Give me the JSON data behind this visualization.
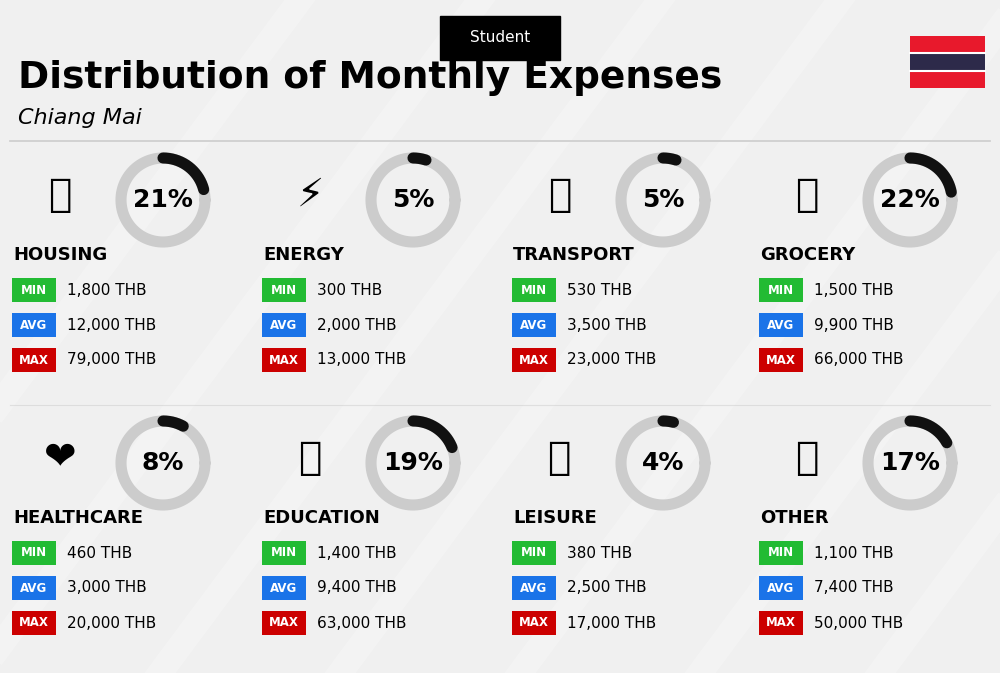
{
  "title": "Distribution of Monthly Expenses",
  "subtitle": "Chiang Mai",
  "category_label": "Student",
  "bg_color": "#f0f0f0",
  "categories": [
    {
      "name": "HOUSING",
      "pct": 21,
      "icon": "🏫",
      "min_val": "1,800 THB",
      "avg_val": "12,000 THB",
      "max_val": "79,000 THB",
      "col": 0,
      "row": 0
    },
    {
      "name": "ENERGY",
      "pct": 5,
      "icon": "⚡",
      "min_val": "300 THB",
      "avg_val": "2,000 THB",
      "max_val": "13,000 THB",
      "col": 1,
      "row": 0
    },
    {
      "name": "TRANSPORT",
      "pct": 5,
      "icon": "🚌",
      "min_val": "530 THB",
      "avg_val": "3,500 THB",
      "max_val": "23,000 THB",
      "col": 2,
      "row": 0
    },
    {
      "name": "GROCERY",
      "pct": 22,
      "icon": "🛒",
      "min_val": "1,500 THB",
      "avg_val": "9,900 THB",
      "max_val": "66,000 THB",
      "col": 3,
      "row": 0
    },
    {
      "name": "HEALTHCARE",
      "pct": 8,
      "icon": "❤️",
      "min_val": "460 THB",
      "avg_val": "3,000 THB",
      "max_val": "20,000 THB",
      "col": 0,
      "row": 1
    },
    {
      "name": "EDUCATION",
      "pct": 19,
      "icon": "🎓",
      "min_val": "1,400 THB",
      "avg_val": "9,400 THB",
      "max_val": "63,000 THB",
      "col": 1,
      "row": 1
    },
    {
      "name": "LEISURE",
      "pct": 4,
      "icon": "🛍️",
      "min_val": "380 THB",
      "avg_val": "2,500 THB",
      "max_val": "17,000 THB",
      "col": 2,
      "row": 1
    },
    {
      "name": "OTHER",
      "pct": 17,
      "icon": "💰",
      "min_val": "1,100 THB",
      "avg_val": "7,400 THB",
      "max_val": "50,000 THB",
      "col": 3,
      "row": 1
    }
  ],
  "min_color": "#22bb33",
  "avg_color": "#1a73e8",
  "max_color": "#cc0000",
  "label_text_color": "#ffffff",
  "arc_color_filled": "#111111",
  "arc_color_empty": "#cccccc",
  "arc_linewidth": 8,
  "pct_fontsize": 18,
  "name_fontsize": 13,
  "val_fontsize": 11,
  "thailand_red": "#E8192C",
  "thailand_blue": "#2D2A4A"
}
